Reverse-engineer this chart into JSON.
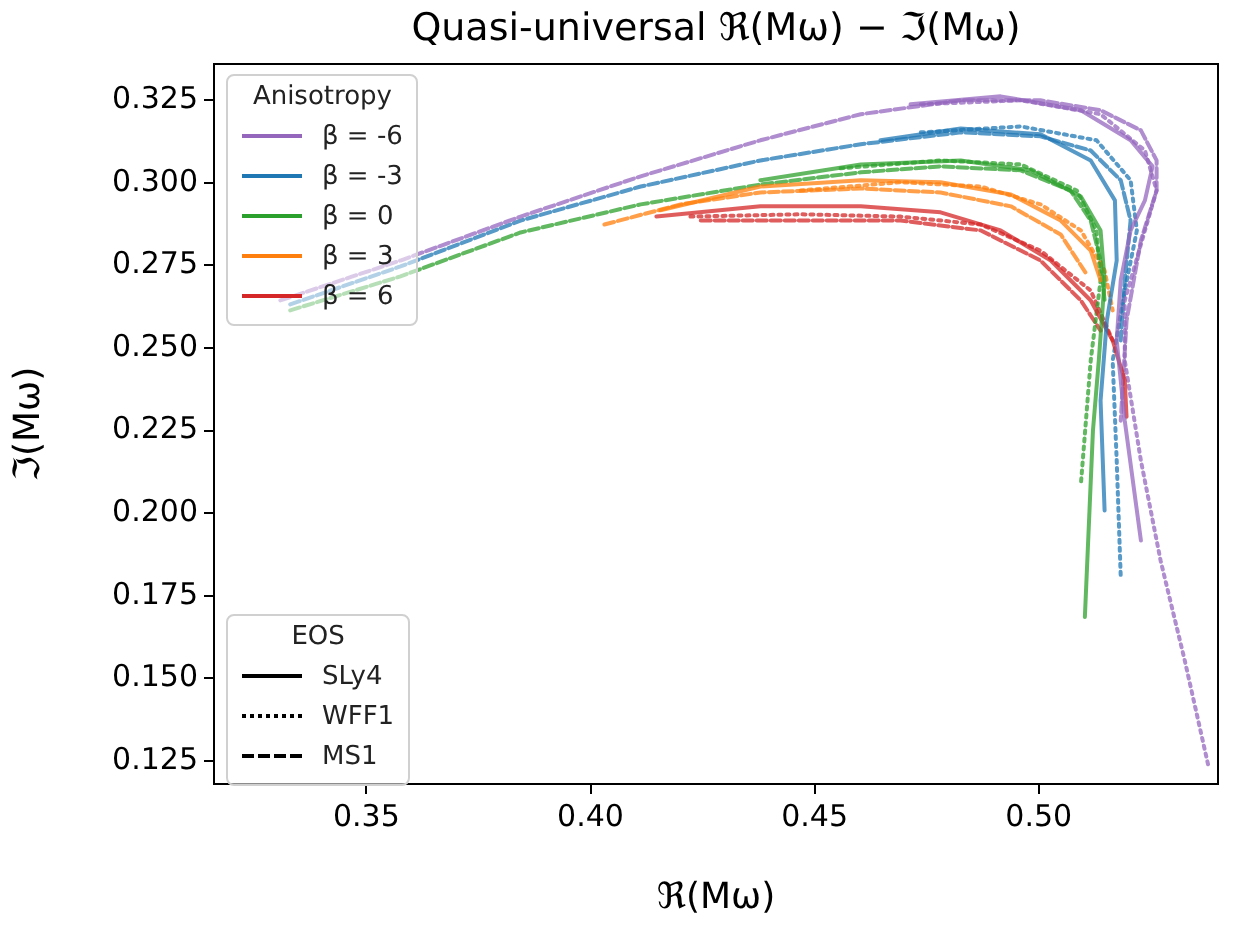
{
  "chart_data": {
    "type": "line",
    "title": "Quasi-universal ℜ(Mω) − ℑ(Mω)",
    "xlabel": "ℜ(Mω)",
    "ylabel": "ℑ(Mω)",
    "legend_title": [
      "Anisotropy",
      "EOS"
    ],
    "legend": [
      "top left",
      "bottom left"
    ],
    "grid": false,
    "xlim": [
      0.316,
      0.54
    ],
    "xticks": [
      0.35,
      {
        "value": 0.4,
        "label": "0.40"
      },
      0.45,
      {
        "value": 0.5,
        "label": "0.50"
      }
    ],
    "ylim": [
      0.118,
      0.336
    ],
    "yticks": [
      0.125,
      {
        "value": 0.15,
        "label": "0.150"
      },
      0.175,
      {
        "value": 0.2,
        "label": "0.200"
      },
      0.225,
      {
        "value": 0.25,
        "label": "0.250"
      },
      0.275,
      {
        "value": 0.3,
        "label": "0.300"
      },
      0.325
    ],
    "series": [
      {
        "name": "β = -6",
        "color": "#9467bd",
        "line_style": "solid",
        "x": [
          0.4714,
          0.4915,
          0.5094,
          0.5205,
          0.5254,
          0.5237,
          0.5205,
          0.5183,
          0.5174,
          0.5192,
          0.5228
        ],
        "values": [
          0.3238,
          0.3262,
          0.322,
          0.3129,
          0.305,
          0.2947,
          0.2856,
          0.2705,
          0.2523,
          0.228,
          0.1917
        ]
      },
      {
        "name": "β = -3",
        "color": "#1f77b4",
        "line_style": "solid",
        "x": [
          0.4647,
          0.4826,
          0.5004,
          0.5116,
          0.517,
          0.5174,
          0.5152,
          0.5138,
          0.5147
        ],
        "values": [
          0.3129,
          0.3165,
          0.3147,
          0.3068,
          0.2947,
          0.2765,
          0.2583,
          0.2341,
          0.2008
        ]
      },
      {
        "name": "β = 0",
        "color": "#2ca02c",
        "line_style": "solid",
        "x": [
          0.4379,
          0.4603,
          0.4826,
          0.4982,
          0.5094,
          0.5138,
          0.5147,
          0.5134,
          0.5121,
          0.5103
        ],
        "values": [
          0.3008,
          0.3056,
          0.3068,
          0.3038,
          0.2959,
          0.2856,
          0.2705,
          0.2462,
          0.225,
          0.1686
        ]
      },
      {
        "name": "β = 3",
        "color": "#ff7f0e",
        "line_style": "solid",
        "x": [
          0.4156,
          0.4379,
          0.4603,
          0.4781,
          0.4938,
          0.5049,
          0.5116,
          0.5138
        ],
        "values": [
          0.2917,
          0.2989,
          0.3008,
          0.3002,
          0.2965,
          0.2886,
          0.2795,
          0.2705
        ]
      },
      {
        "name": "β = 6",
        "color": "#d62728",
        "line_style": "solid",
        "x": [
          0.4147,
          0.4379,
          0.4603,
          0.4781,
          0.4915,
          0.5027,
          0.5116,
          0.5165,
          0.5192,
          0.5196
        ],
        "values": [
          0.2898,
          0.2929,
          0.2929,
          0.2911,
          0.2856,
          0.2765,
          0.2644,
          0.2523,
          0.2402,
          0.2292
        ]
      },
      {
        "color": "#9467bd",
        "line_style": "dotted",
        "x": [
          0.4737,
          0.496,
          0.5138,
          0.5237,
          0.5263,
          0.5237,
          0.5192,
          0.5192,
          0.5228,
          0.5272,
          0.5326,
          0.5379
        ],
        "values": [
          0.3238,
          0.325,
          0.3208,
          0.3098,
          0.2977,
          0.2856,
          0.2644,
          0.2462,
          0.2159,
          0.1856,
          0.1553,
          0.1232
        ]
      },
      {
        "color": "#1f77b4",
        "line_style": "dotted",
        "x": [
          0.4737,
          0.496,
          0.5129,
          0.5205,
          0.5219,
          0.5192,
          0.5165,
          0.5174,
          0.5183
        ],
        "values": [
          0.3153,
          0.3171,
          0.3129,
          0.3008,
          0.2856,
          0.2674,
          0.2462,
          0.2159,
          0.1808
        ]
      },
      {
        "color": "#2ca02c",
        "line_style": "dotted",
        "x": [
          0.4558,
          0.4781,
          0.496,
          0.5085,
          0.5129,
          0.5138,
          0.5116,
          0.5094
        ],
        "values": [
          0.3044,
          0.3068,
          0.3056,
          0.2977,
          0.2856,
          0.2705,
          0.2462,
          0.2086
        ]
      },
      {
        "color": "#ff7f0e",
        "line_style": "dotted",
        "x": [
          0.4469,
          0.4692,
          0.4871,
          0.5004,
          0.5094,
          0.5147,
          0.5165
        ],
        "values": [
          0.2977,
          0.3002,
          0.2989,
          0.2935,
          0.2856,
          0.2735,
          0.2614
        ]
      },
      {
        "color": "#d62728",
        "line_style": "dotted",
        "x": [
          0.4223,
          0.4469,
          0.4692,
          0.4871,
          0.5004,
          0.5116,
          0.5165
        ],
        "values": [
          0.2898,
          0.2905,
          0.2898,
          0.2874,
          0.2795,
          0.2674,
          0.2523
        ]
      },
      {
        "color": "#9467bd",
        "line_style": "dashed",
        "x": [
          0.3308,
          0.3576,
          0.3844,
          0.4112,
          0.4379,
          0.4603,
          0.4826,
          0.5004,
          0.5138,
          0.5228,
          0.5263,
          0.5263,
          0.5228,
          0.5196,
          0.5183
        ],
        "values": [
          0.2644,
          0.2765,
          0.2898,
          0.302,
          0.3129,
          0.3208,
          0.325,
          0.325,
          0.322,
          0.3159,
          0.3068,
          0.2977,
          0.2826,
          0.2583,
          0.228
        ]
      },
      {
        "color": "#1f77b4",
        "line_style": "dashed",
        "x": [
          0.333,
          0.3576,
          0.3844,
          0.4112,
          0.4379,
          0.4603,
          0.4826,
          0.5004,
          0.5116,
          0.5183,
          0.5205,
          0.5192,
          0.5183
        ],
        "values": [
          0.2632,
          0.2747,
          0.2886,
          0.2989,
          0.3068,
          0.3117,
          0.3153,
          0.3141,
          0.3098,
          0.3008,
          0.2886,
          0.2705,
          0.2523
        ]
      },
      {
        "color": "#2ca02c",
        "line_style": "dashed",
        "x": [
          0.333,
          0.3576,
          0.3844,
          0.4112,
          0.4379,
          0.4603,
          0.4781,
          0.496,
          0.5071,
          0.5116,
          0.5138,
          0.5147
        ],
        "values": [
          0.2614,
          0.2717,
          0.285,
          0.2935,
          0.2995,
          0.3032,
          0.305,
          0.3038,
          0.2977,
          0.2886,
          0.2765,
          0.2644
        ]
      },
      {
        "color": "#ff7f0e",
        "line_style": "dashed",
        "x": [
          0.4031,
          0.4201,
          0.4379,
          0.4603,
          0.4781,
          0.4938,
          0.5049,
          0.5107
        ],
        "values": [
          0.2874,
          0.2935,
          0.2971,
          0.2983,
          0.2971,
          0.2929,
          0.2844,
          0.2723
        ]
      },
      {
        "color": "#d62728",
        "line_style": "dashed",
        "x": [
          0.4246,
          0.4469,
          0.4692,
          0.4871,
          0.5004,
          0.5094,
          0.5138
        ],
        "values": [
          0.2886,
          0.2886,
          0.2886,
          0.2856,
          0.2765,
          0.2644,
          0.2553
        ]
      },
      {
        "name": "SLy4",
        "color": "#000000",
        "line_style": "solid"
      },
      {
        "name": "WFF1",
        "color": "#000000",
        "line_style": "dotted"
      },
      {
        "name": "MS1",
        "color": "#000000",
        "line_style": "dashed"
      }
    ]
  }
}
